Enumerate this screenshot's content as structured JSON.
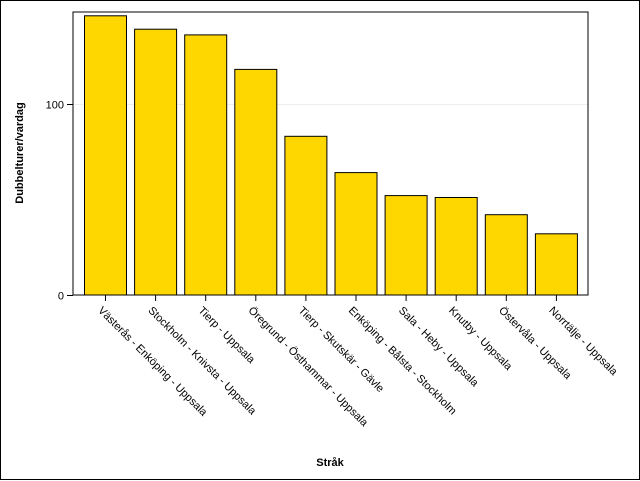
{
  "chart_data": {
    "type": "bar",
    "categories": [
      "Västerås - Enköping - Uppsala",
      "Stockholm - Knivsta - Uppsala",
      "Tierp - Uppsala",
      "Öregrund - Östhammar - Uppsala",
      "Tierp - Skutskär - Gävle",
      "Enköping - Bålsta - Stockholm",
      "Sala - Heby - Uppsala",
      "Knutby - Uppsala",
      "Östervåla - Uppsala",
      "Norrtälje - Uppsala"
    ],
    "values": [
      146,
      139,
      136,
      118,
      83,
      64,
      52,
      51,
      42,
      32
    ],
    "xlabel": "Stråk",
    "ylabel": "Dubbelturer/vardag",
    "ylim": [
      0,
      148
    ],
    "yticks": [
      0,
      100
    ],
    "bar_color": "#ffd700",
    "bar_edge_color": "#000000",
    "grid": "horizontal reference line at 100"
  }
}
